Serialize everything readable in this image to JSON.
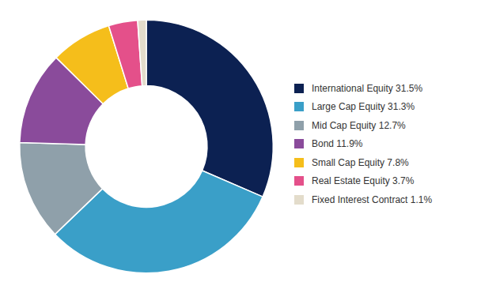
{
  "chart_data": {
    "type": "doughnut",
    "categories": [
      "International Equity 31.5%",
      "Large Cap Equity 31.3%",
      "Mid Cap Equity 12.7%",
      "Bond 11.9%",
      "Small Cap Equity 7.8%",
      "Real Estate Equity 3.7%",
      "Fixed Interest Contract 1.1%"
    ],
    "values": [
      31.5,
      31.3,
      12.7,
      11.9,
      7.8,
      3.7,
      1.1
    ],
    "colors": [
      "#0c2152",
      "#3a9fc8",
      "#8fa0aa",
      "#8a4b9b",
      "#f5be1b",
      "#e4508a",
      "#e3dccb"
    ],
    "legend": "right"
  }
}
